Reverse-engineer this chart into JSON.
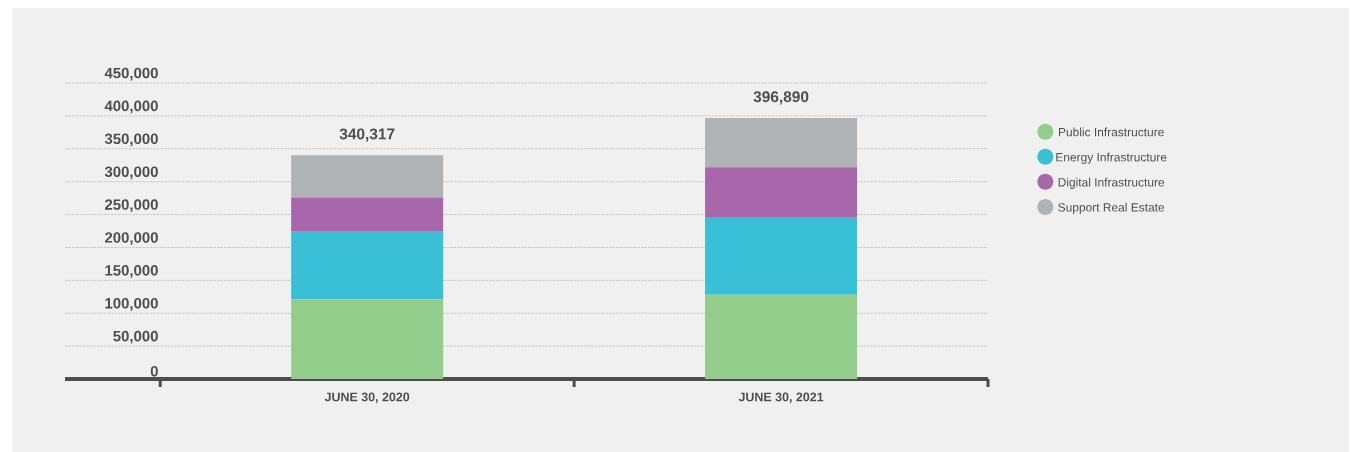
{
  "chart_data": {
    "type": "bar",
    "stacked": true,
    "categories": [
      "JUNE 30, 2020",
      "JUNE 30, 2021"
    ],
    "series": [
      {
        "name": "Public Infrastructure",
        "color": "#92cd8b",
        "values": [
          121000,
          128000
        ]
      },
      {
        "name": "Energy Infrastructure",
        "color": "#39c0d7",
        "values": [
          103000,
          117000
        ]
      },
      {
        "name": "Digital Infrastructure",
        "color": "#a767aa",
        "values": [
          52000,
          77000
        ]
      },
      {
        "name": "Support Real Estate",
        "color": "#b0b3b5",
        "values": [
          64317,
          74890
        ]
      }
    ],
    "totals": [
      "340,317",
      "396,890"
    ],
    "ylim": [
      0,
      450000
    ],
    "yticks": [
      {
        "value": 0,
        "label": "0"
      },
      {
        "value": 50000,
        "label": "50,000"
      },
      {
        "value": 100000,
        "label": "100,000"
      },
      {
        "value": 150000,
        "label": "150,000"
      },
      {
        "value": 200000,
        "label": "200,000"
      },
      {
        "value": 250000,
        "label": "250,000"
      },
      {
        "value": 300000,
        "label": "300,000"
      },
      {
        "value": 350000,
        "label": "350,000"
      },
      {
        "value": 400000,
        "label": "400,000"
      },
      {
        "value": 450000,
        "label": "450,000"
      }
    ],
    "grid": "y",
    "legend": "right"
  }
}
